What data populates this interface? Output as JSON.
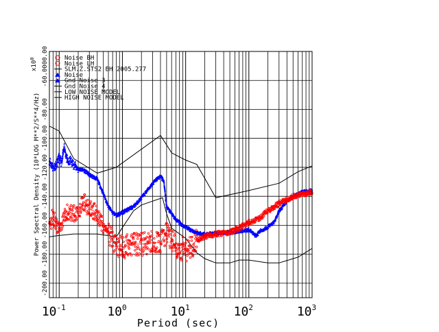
{
  "chart_data": {
    "type": "scatter",
    "title": "",
    "xlabel": "Period (sec)",
    "ylabel": "Power Spectral Density (10*LOG M**2/S**4/Hz)",
    "xscale": "log",
    "xlim": [
      0.07,
      1000
    ],
    "ylim": [
      -210,
      -40
    ],
    "grid": true,
    "legend_position": "top-left",
    "x_tick_labels": [
      {
        "base": "10",
        "exp": "-1"
      },
      {
        "base": "10",
        "exp": "0"
      },
      {
        "base": "10",
        "exp": "1"
      },
      {
        "base": "10",
        "exp": "2"
      },
      {
        "base": "10",
        "exp": "3"
      }
    ],
    "y_tick_labels": [
      "-60.00",
      "-80.00",
      "-100.00",
      "-120.00",
      "-140.00",
      "-160.00",
      "-180.00",
      "-200.00"
    ],
    "y_top_label": "-60.0000.00",
    "y_multiplier": "x10",
    "y_multiplier_exp": "0",
    "legend": [
      {
        "marker": "circle",
        "color": "#ff0000",
        "text": "Noise BH"
      },
      {
        "marker": "circle",
        "color": "#ff0000",
        "text": "Noise LH"
      },
      {
        "marker": "line",
        "color": "#000000",
        "text": "SLM.Z.STS2 BH 2005.277"
      },
      {
        "marker": "triangle",
        "color": "#0000ff",
        "text": "Noise"
      },
      {
        "marker": "triangle",
        "color": "#0000ff",
        "text": "Gnd Noise 3"
      },
      {
        "marker": "line",
        "color": "#000000",
        "text": "Gnd Noise 4"
      },
      {
        "marker": "line",
        "color": "#000000",
        "text": "LOW NOISE MODEL"
      },
      {
        "marker": "line",
        "color": "#000000",
        "text": "HIGH NOISE MODEL"
      }
    ],
    "series": [
      {
        "name": "HIGH NOISE MODEL",
        "color": "#000000",
        "style": "line",
        "x": [
          0.07,
          0.1,
          0.17,
          0.4,
          0.8,
          4,
          6,
          10,
          15,
          30,
          100,
          300,
          600,
          1000
        ],
        "y": [
          -91.5,
          -95,
          -114,
          -124,
          -120,
          -98,
          -110,
          -115,
          -118,
          -141,
          -136,
          -131,
          -123,
          -119
        ]
      },
      {
        "name": "LOW NOISE MODEL",
        "color": "#000000",
        "style": "line",
        "x": [
          0.07,
          0.1,
          0.17,
          0.4,
          0.8,
          1.5,
          2,
          4.3,
          5,
          6,
          10,
          15,
          20,
          30,
          50,
          70,
          100,
          200,
          300,
          600,
          1000
        ],
        "y": [
          -168,
          -167,
          -166,
          -166,
          -168,
          -150,
          -146,
          -141,
          -152,
          -162,
          -169,
          -179,
          -183,
          -186,
          -186,
          -184,
          -184,
          -186,
          -186,
          -182,
          -176
        ]
      },
      {
        "name": "SLM.Z.STS2 BH 2005.277",
        "color": "#000000",
        "style": "line",
        "x": [
          15,
          20,
          25,
          30,
          35,
          40,
          50,
          60,
          70,
          80,
          90,
          100
        ],
        "y": [
          -167,
          -165.5,
          -166,
          -165,
          -165.5,
          -164,
          -163.5,
          -162,
          -161.5,
          -160,
          -159.5,
          -158
        ]
      },
      {
        "name": "Noise",
        "color": "#0000ff",
        "style": "markers",
        "x": [
          0.07,
          0.08,
          0.09,
          0.1,
          0.11,
          0.12,
          0.13,
          0.14,
          0.15,
          0.17,
          0.2,
          0.25,
          0.3,
          0.4,
          0.5,
          0.6,
          0.7,
          0.8,
          1.0,
          1.5,
          2,
          3,
          3.5,
          4,
          4.5,
          5,
          6,
          7,
          8,
          9,
          10,
          12,
          15,
          20,
          30,
          50,
          70,
          100,
          130,
          150,
          200,
          250,
          300,
          400,
          500,
          700,
          1000
        ],
        "y": [
          -115,
          -120,
          -118,
          -113,
          -117,
          -105,
          -113,
          -117,
          -115,
          -118,
          -121,
          -122,
          -125,
          -128,
          -138,
          -147,
          -151,
          -153,
          -151,
          -147,
          -141,
          -131,
          -128,
          -126,
          -129,
          -147,
          -152,
          -156,
          -158,
          -160,
          -161,
          -163,
          -165,
          -166,
          -165.5,
          -165,
          -164,
          -163,
          -167,
          -164,
          -161,
          -158,
          -150,
          -143,
          -140,
          -137,
          -136
        ]
      },
      {
        "name": "Noise BH",
        "color": "#ff0000",
        "style": "markers",
        "x": [
          0.07,
          0.08,
          0.09,
          0.1,
          0.12,
          0.13,
          0.14,
          0.15,
          0.17,
          0.2,
          0.25,
          0.3,
          0.35,
          0.4,
          0.5,
          0.6,
          0.7,
          0.8,
          1.0,
          1.5,
          2,
          3,
          4,
          5,
          6,
          7,
          8,
          9,
          10,
          12,
          15,
          20,
          30,
          50,
          70,
          100,
          150,
          200,
          300,
          500,
          1000
        ],
        "y": [
          -158,
          -155,
          -160,
          -162,
          -155,
          -150,
          -153,
          -151,
          -152,
          -150,
          -144,
          -149,
          -150,
          -152,
          -160,
          -165,
          -170,
          -174,
          -175,
          -173,
          -173,
          -172,
          -172,
          -165,
          -170,
          -175,
          -180,
          -176,
          -178,
          -175,
          -170,
          -168,
          -166,
          -165,
          -162,
          -158,
          -155,
          -150,
          -145,
          -140,
          -137
        ]
      }
    ]
  }
}
